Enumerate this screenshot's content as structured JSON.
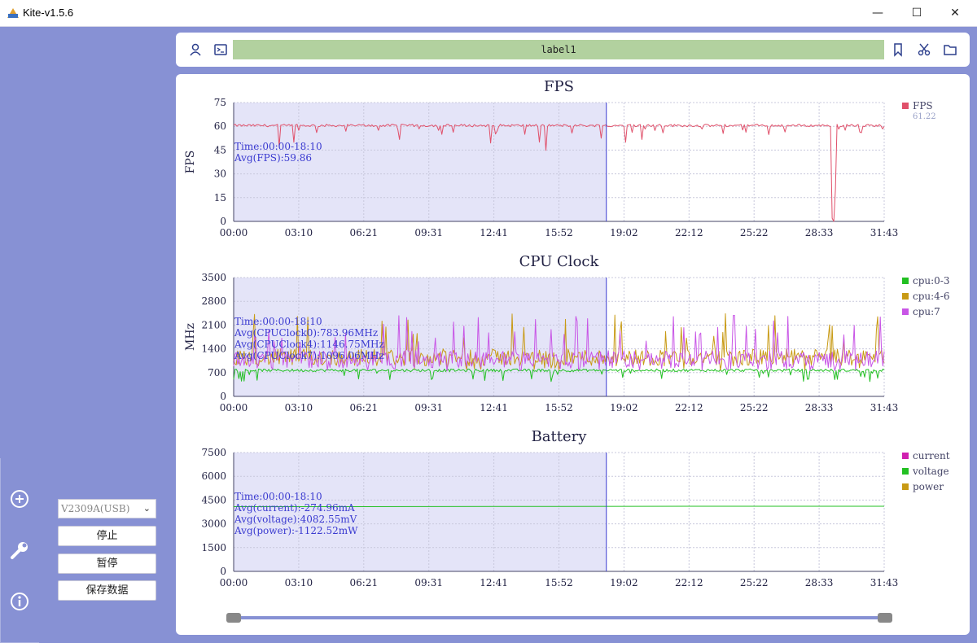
{
  "window": {
    "title": "Kite-v1.5.6",
    "minimize": "—",
    "maximize": "☐",
    "close": "✕"
  },
  "toolbar": {
    "label": "label1"
  },
  "controls": {
    "device": "V2309A(USB)",
    "stop_label": "停止",
    "pause_label": "暂停",
    "save_label": "保存数据"
  },
  "colors": {
    "background": "#8791d4",
    "label_bar": "#b2d19f",
    "selection": "#e4e4f8",
    "cursor": "#3a3ad0",
    "fps": "#e0506a",
    "cpu0": "#22c022",
    "cpu4": "#c89a14",
    "cpu7": "#c855e6",
    "current": "#d020b0",
    "voltage": "#22c022",
    "power": "#c89a14"
  },
  "chart_data": [
    {
      "type": "line",
      "title": "FPS",
      "ylabel": "FPS",
      "ylim": [
        0,
        75
      ],
      "yticks": [
        "75",
        "60",
        "45",
        "30",
        "15",
        "0"
      ],
      "xticks": [
        "00:00",
        "03:10",
        "06:21",
        "09:31",
        "12:41",
        "15:52",
        "19:02",
        "22:12",
        "25:22",
        "28:33",
        "31:43"
      ],
      "legend": [
        {
          "name": "FPS",
          "color": "#e0506a",
          "value": "61.22"
        }
      ],
      "annotation": [
        "Time:00:00-18:10",
        "Avg(FPS):59.86"
      ],
      "series": [
        {
          "name": "FPS",
          "baseline": 60.5
        }
      ]
    },
    {
      "type": "line",
      "title": "CPU Clock",
      "ylabel": "MHz",
      "ylim": [
        0,
        3500
      ],
      "yticks": [
        "3500",
        "2800",
        "2100",
        "1400",
        "700",
        "0"
      ],
      "xticks": [
        "00:00",
        "03:10",
        "06:21",
        "09:31",
        "12:41",
        "15:52",
        "19:02",
        "22:12",
        "25:22",
        "28:33",
        "31:43"
      ],
      "legend": [
        {
          "name": "cpu:0-3",
          "color": "#22c022"
        },
        {
          "name": "cpu:4-6",
          "color": "#c89a14"
        },
        {
          "name": "cpu:7",
          "color": "#c855e6"
        }
      ],
      "annotation": [
        "Time:00:00-18:10",
        "Avg(CPUClock0):783.96MHz",
        "Avg(CPUClock4):1146.75MHz",
        "Avg(CPUClock7):1096.06MHz"
      ],
      "series": [
        {
          "name": "cpu:0-3",
          "baseline": 784
        },
        {
          "name": "cpu:4-6",
          "baseline": 1147
        },
        {
          "name": "cpu:7",
          "baseline": 1096
        }
      ]
    },
    {
      "type": "line",
      "title": "Battery",
      "ylabel": "",
      "ylim": [
        0,
        7500
      ],
      "yticks": [
        "7500",
        "6000",
        "4500",
        "3000",
        "1500",
        "0"
      ],
      "xticks": [
        "00:00",
        "03:10",
        "06:21",
        "09:31",
        "12:41",
        "15:52",
        "19:02",
        "22:12",
        "25:22",
        "28:33",
        "31:43"
      ],
      "legend": [
        {
          "name": "current",
          "color": "#d020b0"
        },
        {
          "name": "voltage",
          "color": "#22c022"
        },
        {
          "name": "power",
          "color": "#c89a14"
        }
      ],
      "annotation": [
        "Time:00:00-18:10",
        "Avg(current):-274.96mA",
        "Avg(voltage):4082.55mV",
        "Avg(power):-1122.52mW"
      ],
      "series": [
        {
          "name": "voltage",
          "values": [
            4082,
            4082,
            4085,
            4090,
            4095,
            4100,
            4105,
            4108,
            4110,
            4112,
            4112
          ]
        }
      ]
    }
  ],
  "selection": {
    "start": "00:00",
    "end": "18:10"
  },
  "slider_range": {
    "start_fraction": 0.0,
    "end_fraction": 1.0
  }
}
